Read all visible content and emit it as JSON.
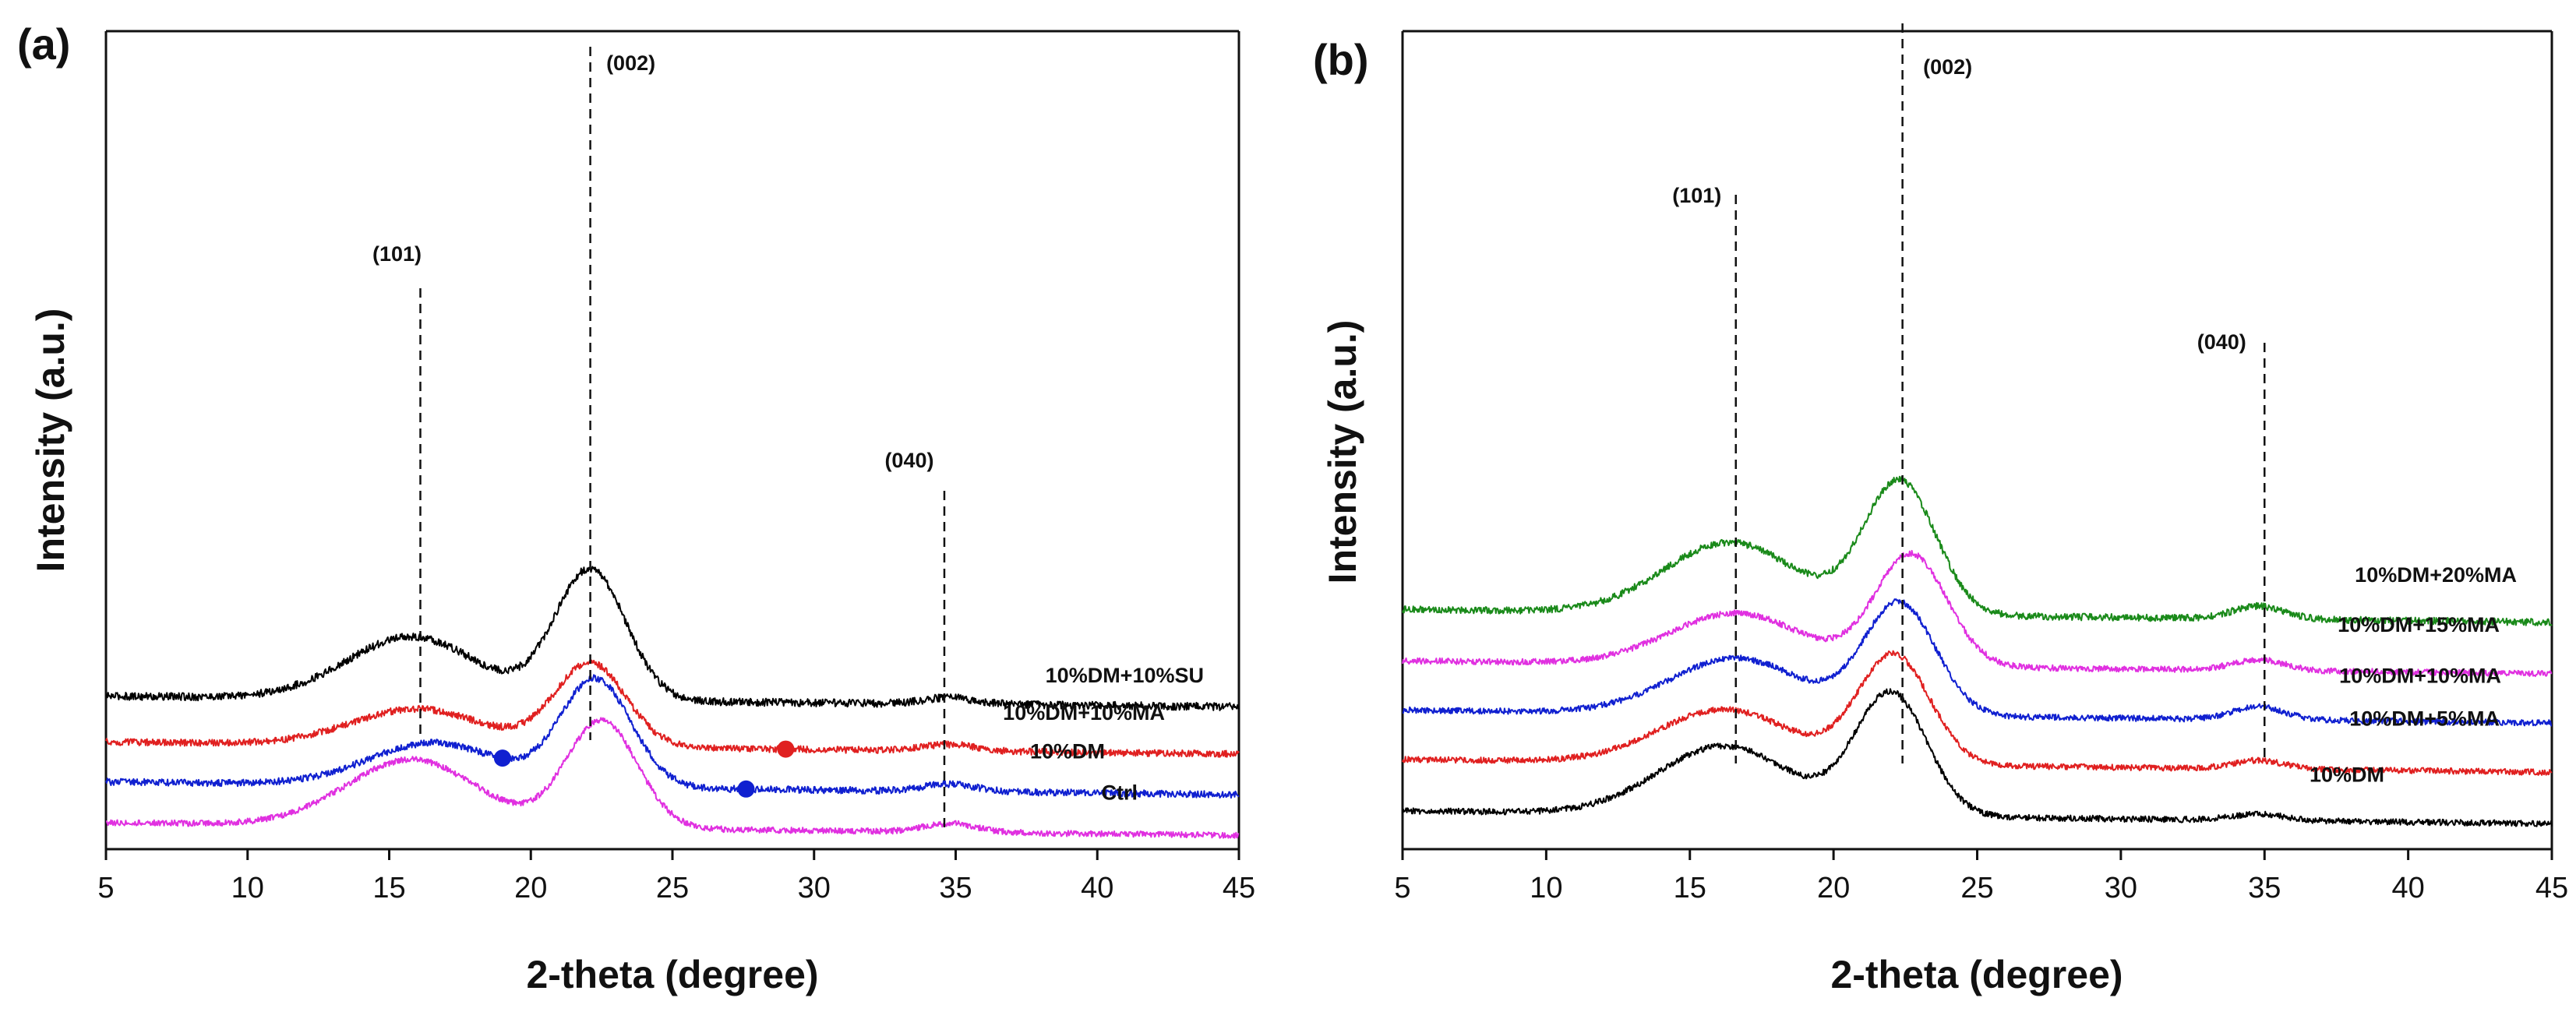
{
  "chart_data": [
    {
      "panel": "(a)",
      "type": "line",
      "xlabel": "2-theta (degree)",
      "ylabel": "Intensity (a.u.)",
      "xlim": [
        5,
        45
      ],
      "xticks": [
        5,
        10,
        15,
        20,
        25,
        30,
        35,
        40,
        45
      ],
      "yticks": [],
      "peaks": [
        {
          "label": "(101)",
          "x": 16.1
        },
        {
          "label": "(002)",
          "x": 22.1
        },
        {
          "label": "(040)",
          "x": 34.6
        }
      ],
      "series": [
        {
          "name": "10%DM+10%SU",
          "color": "#000000",
          "offset": 3.0,
          "peak101": 1.45,
          "peak002": 3.05,
          "peak040": 0.15,
          "center101": 15.8,
          "center002": 22.1,
          "baseline": 0.25,
          "noise": 0.09
        },
        {
          "name": "10%DM+10%MA",
          "color": "#e02020",
          "offset": 1.9,
          "peak101": 0.85,
          "peak002": 1.95,
          "peak040": 0.15,
          "center101": 16.0,
          "center002": 22.1,
          "baseline": 0.28,
          "noise": 0.08,
          "markers": [
            {
              "x": 29.0
            }
          ]
        },
        {
          "name": "10%DM",
          "color": "#1020d0",
          "offset": 0.95,
          "peak101": 1.0,
          "peak002": 2.5,
          "peak040": 0.17,
          "center101": 16.6,
          "center002": 22.3,
          "baseline": 0.3,
          "noise": 0.08,
          "markers": [
            {
              "x": 19.0
            },
            {
              "x": 27.6
            }
          ]
        },
        {
          "name": "Ctrl",
          "color": "#e030e0",
          "offset": 0.0,
          "peak101": 1.55,
          "peak002": 2.5,
          "peak040": 0.2,
          "center101": 15.8,
          "center002": 22.5,
          "baseline": 0.3,
          "noise": 0.07
        }
      ]
    },
    {
      "panel": "(b)",
      "type": "line",
      "xlabel": "2-theta (degree)",
      "ylabel": "Intensity (a.u.)",
      "xlim": [
        5,
        45
      ],
      "xticks": [
        5,
        10,
        15,
        20,
        25,
        30,
        35,
        40,
        45
      ],
      "yticks": [],
      "peaks": [
        {
          "label": "(101)",
          "x": 16.6
        },
        {
          "label": "(002)",
          "x": 22.4
        },
        {
          "label": "(040)",
          "x": 35.0
        }
      ],
      "series": [
        {
          "name": "10%DM+20%MA",
          "color": "#1a8a1a",
          "offset": 4.7,
          "peak101": 1.65,
          "peak002": 3.1,
          "peak040": 0.3,
          "center101": 16.4,
          "center002": 22.3,
          "baseline": 0.3,
          "noise": 0.08
        },
        {
          "name": "10%DM+15%MA",
          "color": "#e030e0",
          "offset": 3.5,
          "peak101": 1.2,
          "peak002": 2.6,
          "peak040": 0.25,
          "center101": 16.6,
          "center002": 22.7,
          "baseline": 0.3,
          "noise": 0.07
        },
        {
          "name": "10%DM+10%MA",
          "color": "#1020d0",
          "offset": 2.35,
          "peak101": 1.3,
          "peak002": 2.6,
          "peak040": 0.3,
          "center101": 16.6,
          "center002": 22.3,
          "baseline": 0.3,
          "noise": 0.07
        },
        {
          "name": "10%DM+5%MA",
          "color": "#e02020",
          "offset": 1.2,
          "peak101": 1.25,
          "peak002": 2.55,
          "peak040": 0.2,
          "center101": 16.2,
          "center002": 22.1,
          "baseline": 0.3,
          "noise": 0.07
        },
        {
          "name": "10%DM",
          "color": "#000000",
          "offset": 0.0,
          "peak101": 1.6,
          "peak002": 2.85,
          "peak040": 0.15,
          "center101": 16.2,
          "center002": 22.0,
          "baseline": 0.3,
          "noise": 0.07
        }
      ]
    }
  ]
}
